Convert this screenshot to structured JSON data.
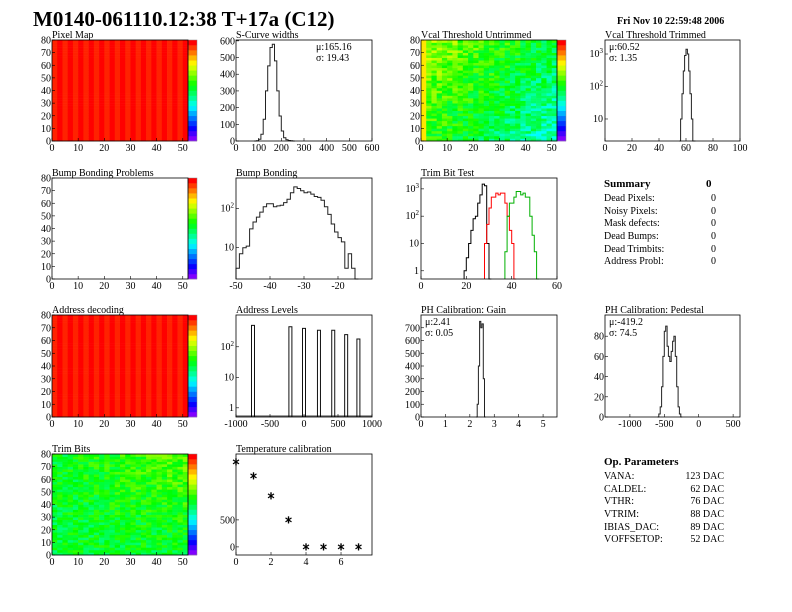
{
  "header": {
    "title": "M0140-061110.12:38 T+17a (C12)",
    "date": "Fri Nov 10 22:59:48 2006"
  },
  "summary": {
    "title": "Summary",
    "total": "0",
    "rows": [
      {
        "label": "Dead Pixels:",
        "value": "0"
      },
      {
        "label": "Noisy Pixels:",
        "value": "0"
      },
      {
        "label": "Mask defects:",
        "value": "0"
      },
      {
        "label": "Dead Bumps:",
        "value": "0"
      },
      {
        "label": "Dead Trimbits:",
        "value": "0"
      },
      {
        "label": "Address Probl:",
        "value": "0"
      }
    ]
  },
  "op_params": {
    "title": "Op. Parameters",
    "rows": [
      {
        "label": "VANA:",
        "value": "123 DAC"
      },
      {
        "label": "CALDEL:",
        "value": "62 DAC"
      },
      {
        "label": "VTHR:",
        "value": "76 DAC"
      },
      {
        "label": "VTRIM:",
        "value": "88 DAC"
      },
      {
        "label": "IBIAS_DAC:",
        "value": "89 DAC"
      },
      {
        "label": "VOFFSETOP:",
        "value": "52 DAC"
      }
    ]
  },
  "chart_data": [
    {
      "id": "pixelmap",
      "type": "heatmap",
      "title": "Pixel Map",
      "xlim": [
        0,
        52
      ],
      "ylim": [
        0,
        80
      ],
      "xticks": [
        0,
        10,
        20,
        30,
        40,
        50
      ],
      "yticks": [
        0,
        10,
        20,
        30,
        40,
        50,
        60,
        70,
        80
      ],
      "fill": "uniform-max",
      "level": 1.0
    },
    {
      "id": "scurve",
      "type": "bar",
      "title": "S-Curve widths",
      "xlim": [
        0,
        600
      ],
      "ylim": [
        0,
        605
      ],
      "xticks": [
        0,
        100,
        200,
        300,
        400,
        500,
        600
      ],
      "yticks": [
        0,
        100,
        200,
        300,
        400,
        500,
        600
      ],
      "x_start": 80,
      "bin_width": 10,
      "values": [
        0,
        2,
        10,
        40,
        130,
        300,
        450,
        560,
        580,
        480,
        300,
        150,
        60,
        20,
        8,
        3,
        1,
        0
      ],
      "stats": {
        "mean": "μ:165.16",
        "sigma": "σ: 19.43"
      }
    },
    {
      "id": "vcal_untrimmed",
      "type": "heatmap",
      "title": "Vcal Threshold Untrimmed",
      "xlim": [
        0,
        52
      ],
      "ylim": [
        0,
        80
      ],
      "xticks": [
        0,
        10,
        20,
        30,
        40,
        50
      ],
      "yticks": [
        0,
        10,
        20,
        30,
        40,
        50,
        60,
        70,
        80
      ],
      "fill": "noise-gradient",
      "level": 0.45
    },
    {
      "id": "vcal_trimmed",
      "type": "bar",
      "title": "Vcal Threshold Trimmed",
      "log_y": true,
      "xlim": [
        0,
        100
      ],
      "ylim": [
        2.1,
        2700
      ],
      "xticks": [
        0,
        20,
        40,
        60,
        80,
        100
      ],
      "yticks": [
        10,
        100,
        1000
      ],
      "x_start": 55,
      "bin_width": 1,
      "values": [
        2,
        10,
        60,
        300,
        900,
        1400,
        1000,
        300,
        60,
        10,
        2,
        0
      ],
      "stats": {
        "mean": "μ:60.52",
        "sigma": "σ: 1.35"
      }
    },
    {
      "id": "bump_problems",
      "type": "heatmap",
      "title": "Bump Bonding Problems",
      "xlim": [
        0,
        52
      ],
      "ylim": [
        0,
        80
      ],
      "xticks": [
        0,
        10,
        20,
        30,
        40,
        50
      ],
      "yticks": [
        0,
        10,
        20,
        30,
        40,
        50,
        60,
        70,
        80
      ],
      "fill": "empty",
      "level": 0
    },
    {
      "id": "bump_bonding",
      "type": "bar",
      "title": "Bump Bonding",
      "log_y": true,
      "xlim": [
        -50,
        -10
      ],
      "ylim": [
        1.6,
        590
      ],
      "xticks": [
        -50,
        -40,
        -30,
        -20
      ],
      "yticks": [
        10,
        100
      ],
      "x_start": -50,
      "bin_width": 1,
      "values": [
        3,
        7,
        10,
        11,
        30,
        45,
        60,
        80,
        110,
        130,
        130,
        110,
        115,
        120,
        140,
        170,
        250,
        350,
        320,
        280,
        250,
        260,
        230,
        200,
        190,
        160,
        110,
        70,
        40,
        25,
        18,
        14,
        3,
        7,
        3,
        0
      ]
    },
    {
      "id": "trimbit",
      "type": "bar",
      "title": "Trim Bit Test",
      "log_y": true,
      "xlim": [
        0,
        60
      ],
      "ylim": [
        0.5,
        2500
      ],
      "xticks": [
        0,
        20,
        40,
        60
      ],
      "yticks": [
        1,
        10,
        100,
        1000
      ],
      "series": [
        {
          "color": "#000000",
          "x_start": 19,
          "bin_width": 1,
          "values": [
            1,
            3,
            10,
            30,
            80,
            100,
            300,
            600,
            1500,
            1300,
            10,
            0
          ]
        },
        {
          "color": "#ff0000",
          "x_start": 28,
          "bin_width": 1,
          "values": [
            10,
            50,
            200,
            500,
            500,
            700,
            600,
            700,
            700,
            300,
            100,
            30,
            10,
            0
          ]
        },
        {
          "color": "#00b000",
          "x_start": 37,
          "bin_width": 1,
          "values": [
            5,
            100,
            300,
            300,
            500,
            800,
            800,
            600,
            700,
            500,
            500,
            100,
            20,
            5,
            0
          ]
        }
      ]
    },
    {
      "id": "address_decoding",
      "type": "heatmap",
      "title": "Address decoding",
      "xlim": [
        0,
        52
      ],
      "ylim": [
        0,
        80
      ],
      "xticks": [
        0,
        10,
        20,
        30,
        40,
        50
      ],
      "yticks": [
        0,
        10,
        20,
        30,
        40,
        50,
        60,
        70,
        80
      ],
      "fill": "uniform-max",
      "level": 1.0
    },
    {
      "id": "address_levels",
      "type": "bar",
      "title": "Address Levels",
      "log_y": true,
      "xlim": [
        -1000,
        1000
      ],
      "ylim": [
        0.5,
        1100
      ],
      "xticks": [
        -1000,
        -500,
        0,
        500,
        1000
      ],
      "yticks": [
        1,
        10,
        100
      ],
      "peaks": [
        {
          "x": -750,
          "y": 500
        },
        {
          "x": -200,
          "y": 450
        },
        {
          "x": 0,
          "y": 400
        },
        {
          "x": 220,
          "y": 350
        },
        {
          "x": 430,
          "y": 350
        },
        {
          "x": 620,
          "y": 250
        },
        {
          "x": 800,
          "y": 180
        }
      ]
    },
    {
      "id": "gain",
      "type": "bar",
      "title": "PH Calibration: Gain",
      "xlim": [
        0,
        5.57
      ],
      "ylim": [
        0,
        800
      ],
      "xticks": [
        0,
        1,
        2,
        3,
        4,
        5
      ],
      "yticks": [
        0,
        100,
        200,
        300,
        400,
        500,
        600,
        700
      ],
      "x_start": 2.25,
      "bin_width": 0.05,
      "values": [
        0,
        100,
        400,
        750,
        700,
        730,
        300,
        0
      ],
      "stats": {
        "mean": "μ:2.41",
        "sigma": "σ: 0.05"
      }
    },
    {
      "id": "pedestal",
      "type": "bar",
      "title": "PH Calibration: Pedestal",
      "xlim": [
        -1362,
        600
      ],
      "ylim": [
        0,
        101
      ],
      "xticks": [
        -1000,
        -500,
        0,
        500
      ],
      "yticks": [
        0,
        20,
        40,
        60,
        80
      ],
      "x_start": -600,
      "bin_width": 20,
      "values": [
        0,
        3,
        10,
        30,
        60,
        85,
        90,
        70,
        60,
        55,
        65,
        75,
        80,
        60,
        30,
        10,
        3,
        0
      ],
      "stats": {
        "mean": "μ:-419.2",
        "sigma": "σ: 74.5"
      }
    },
    {
      "id": "trim_bits",
      "type": "heatmap",
      "title": "Trim Bits",
      "xlim": [
        0,
        52
      ],
      "ylim": [
        0,
        80
      ],
      "xticks": [
        0,
        10,
        20,
        30,
        40,
        50
      ],
      "yticks": [
        0,
        10,
        20,
        30,
        40,
        50,
        60,
        70,
        80
      ],
      "fill": "noise",
      "level": 0.6
    },
    {
      "id": "temperature",
      "type": "scatter",
      "title": "Temperature calibration",
      "xlim": [
        0,
        7.77
      ],
      "ylim": [
        -150,
        1720
      ],
      "xticks": [
        0,
        2,
        4,
        6
      ],
      "yticks": [
        0,
        500
      ],
      "x": [
        0,
        1,
        2,
        3,
        4,
        5,
        6,
        7
      ],
      "y": [
        1575,
        1315,
        945,
        500,
        0,
        0,
        0,
        0
      ],
      "marker": "asterisk"
    }
  ]
}
